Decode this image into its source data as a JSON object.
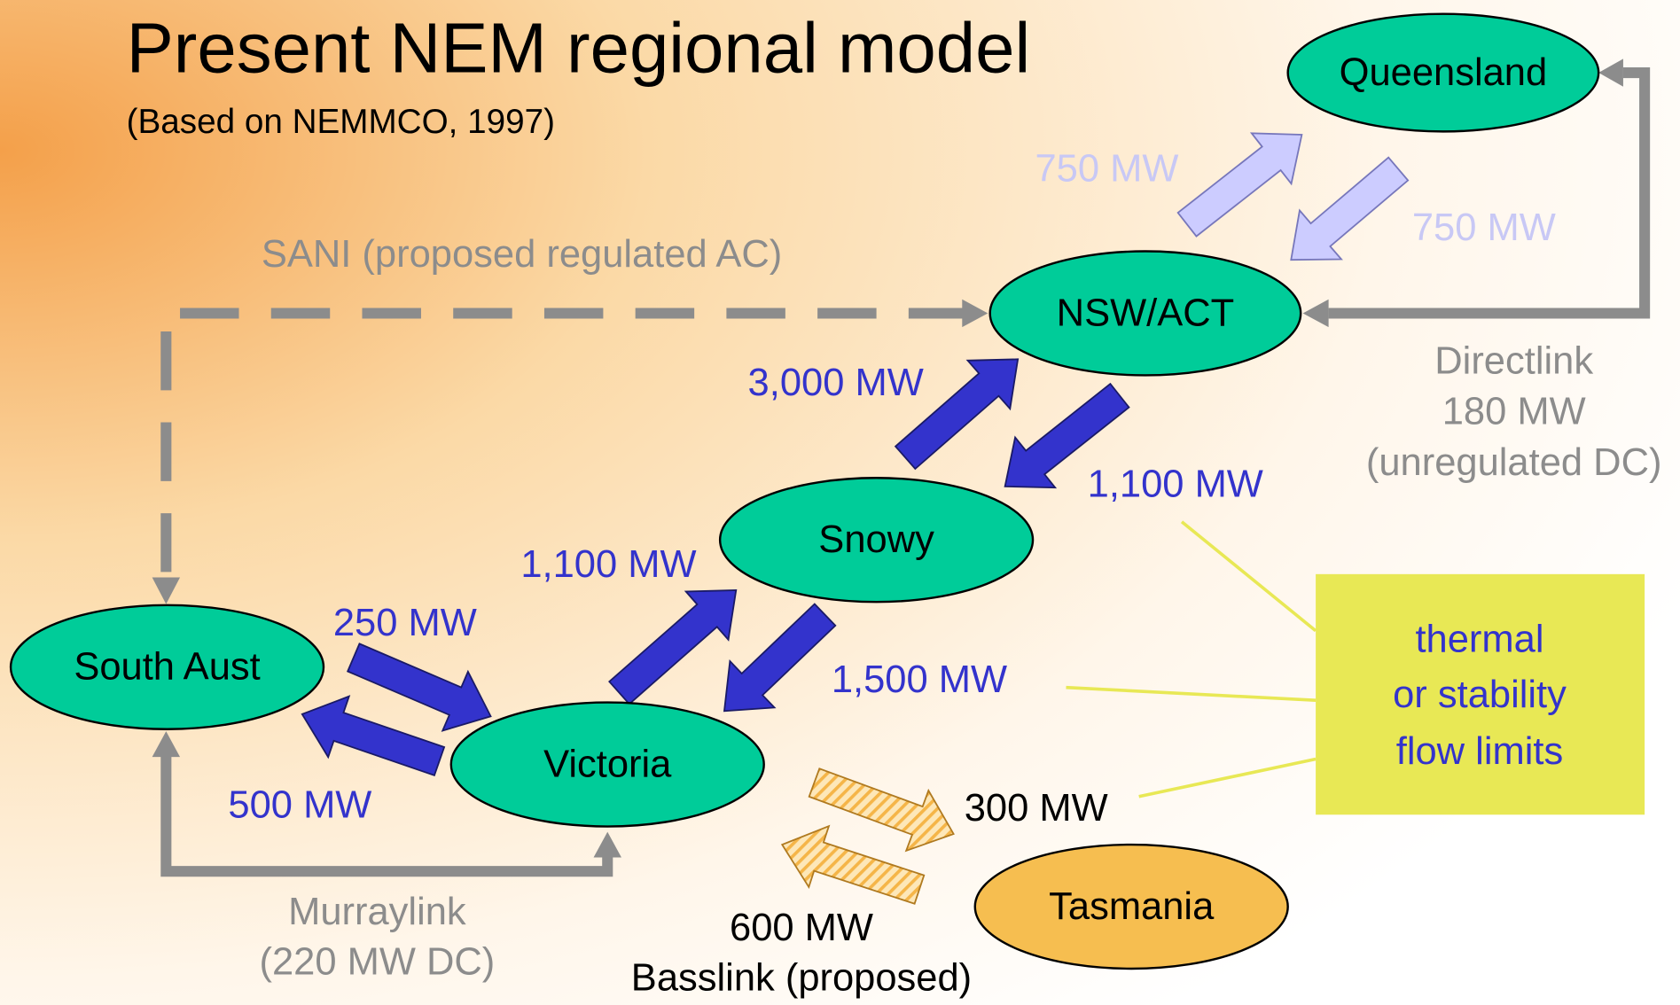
{
  "header": {
    "title": "Present NEM regional model",
    "subtitle": "(Based on NEMMCO, 1997)"
  },
  "nodes": [
    {
      "label": "Queensland"
    },
    {
      "label": "NSW/ACT"
    },
    {
      "label": "Snowy"
    },
    {
      "label": "South Aust"
    },
    {
      "label": "Victoria"
    },
    {
      "label": "Tasmania"
    }
  ],
  "links": {
    "qld_up": "750 MW",
    "qld_down": "750 MW",
    "sani": "SANI (proposed regulated AC)",
    "snowy_nsw": "3,000 MW",
    "nsw_snowy": "1,100 MW",
    "directlink": [
      "Directlink",
      "180 MW",
      "(unregulated DC)"
    ],
    "vic_snowy": "1,100 MW",
    "sa_vic": "250 MW",
    "snowy_vic": "1,500 MW",
    "vic_sa": "500 MW",
    "vic_tas": "300 MW",
    "murraylink": [
      "Murraylink",
      "(220 MW DC)"
    ],
    "basslink": [
      "600 MW",
      "Basslink (proposed)"
    ]
  },
  "callout": [
    "thermal",
    "or stability",
    "flow limits"
  ]
}
